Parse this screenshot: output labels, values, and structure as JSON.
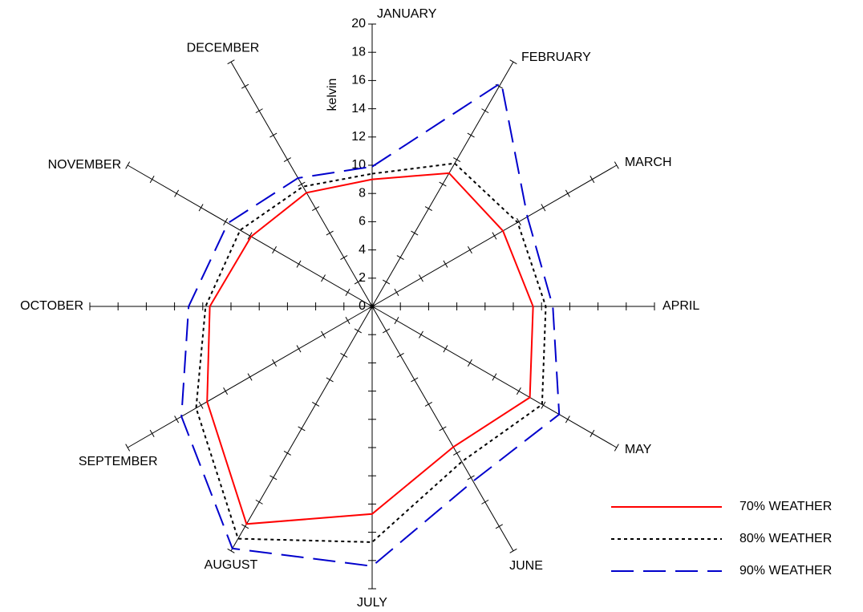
{
  "chart_data": {
    "type": "radar",
    "y_label": "kelvin",
    "categories": [
      "JANUARY",
      "FEBRUARY",
      "MARCH",
      "APRIL",
      "MAY",
      "JUNE",
      "JULY",
      "AUGUST",
      "SEPTEMBER",
      "OCTOBER",
      "NOVEMBER",
      "DECEMBER"
    ],
    "ylim": [
      0,
      20
    ],
    "yticks": [
      0,
      2,
      4,
      6,
      8,
      10,
      12,
      14,
      16,
      18,
      20
    ],
    "series": [
      {
        "name": "70% WEATHER",
        "color": "#ff0000",
        "line_style": "solid",
        "values": [
          9.0,
          10.9,
          10.7,
          11.4,
          12.9,
          11.5,
          14.7,
          17.8,
          13.5,
          11.5,
          9.9,
          9.3
        ]
      },
      {
        "name": "80% WEATHER",
        "color": "#000000",
        "line_style": "dotted",
        "values": [
          9.4,
          11.7,
          11.9,
          12.3,
          13.9,
          12.7,
          16.7,
          19.0,
          14.4,
          11.8,
          10.8,
          9.8
        ]
      },
      {
        "name": "90% WEATHER",
        "color": "#0000cc",
        "line_style": "dashed",
        "values": [
          9.9,
          18.3,
          12.7,
          12.8,
          15.3,
          14.3,
          18.4,
          19.8,
          15.6,
          13.0,
          11.8,
          10.5
        ]
      }
    ],
    "legend": "lower right"
  }
}
